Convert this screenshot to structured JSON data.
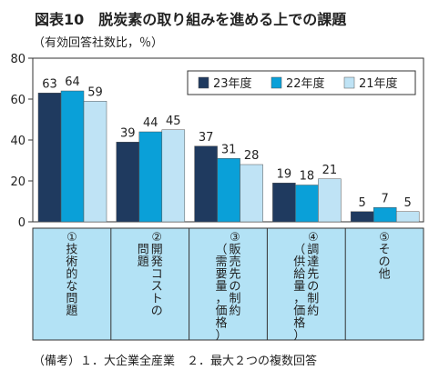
{
  "title": "図表10　脱炭素の取り組みを進める上での課題",
  "subtitle": "（有効回答社数比，％）",
  "note": "（備考）１．大企業全産業　２．最大２つの複数回答",
  "chart_data": {
    "type": "bar",
    "categories": [
      {
        "num": "①",
        "lines": [
          "技術的な問題"
        ]
      },
      {
        "num": "②",
        "lines": [
          "開発コストの",
          "問題"
        ]
      },
      {
        "num": "③",
        "lines": [
          "販売先の制約",
          "（需要量，価格）"
        ]
      },
      {
        "num": "④",
        "lines": [
          "調達先の制約",
          "（供給量，価格）"
        ]
      },
      {
        "num": "⑤",
        "lines": [
          "その他"
        ]
      }
    ],
    "series": [
      {
        "name": "23年度",
        "color": "#1f3a5f",
        "values": [
          63,
          39,
          37,
          19,
          5
        ]
      },
      {
        "name": "22年度",
        "color": "#0aa0d8",
        "values": [
          64,
          44,
          31,
          18,
          7
        ]
      },
      {
        "name": "21年度",
        "color": "#bfe3f5",
        "values": [
          59,
          45,
          28,
          21,
          5
        ]
      }
    ],
    "ylim": [
      0,
      80
    ],
    "yticks": [
      0,
      20,
      40,
      60,
      80
    ],
    "legend_position": "top-right",
    "category_band_color": "#b3e2f5",
    "grid": false
  }
}
